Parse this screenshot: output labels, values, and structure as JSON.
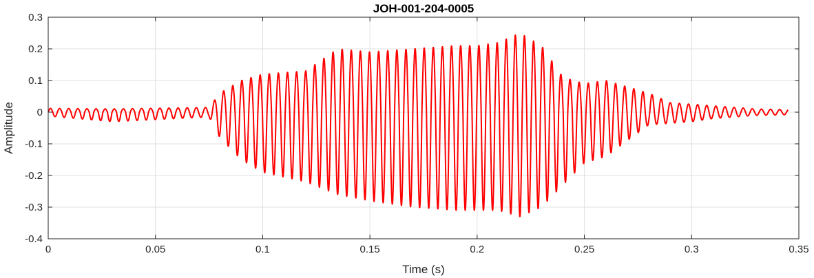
{
  "chart_data": {
    "type": "line",
    "title": "JOH-001-204-0005",
    "xlabel": "Time (s)",
    "ylabel": "Amplitude",
    "xlim": [
      0,
      0.35
    ],
    "ylim": [
      -0.4,
      0.3
    ],
    "xticks": [
      0,
      0.05,
      0.1,
      0.15,
      0.2,
      0.25,
      0.3,
      0.35
    ],
    "xtick_labels": [
      "0",
      "0.05",
      "0.1",
      "0.15",
      "0.2",
      "0.25",
      "0.3",
      "0.35"
    ],
    "yticks": [
      0.3,
      0.2,
      0.1,
      0,
      -0.1,
      -0.2,
      -0.3,
      -0.4
    ],
    "ytick_labels": [
      "0.3",
      "0.2",
      "0.1",
      "0",
      "-0.1",
      "-0.2",
      "-0.3",
      "-0.4"
    ],
    "grid": true,
    "legend": "none",
    "series": [
      {
        "color": "#ff0000",
        "x_range": [
          0,
          0.345
        ],
        "envelope_positive": {
          "x": [
            0,
            0.03,
            0.075,
            0.08,
            0.09,
            0.1,
            0.12,
            0.135,
            0.15,
            0.17,
            0.19,
            0.2,
            0.21,
            0.22,
            0.23,
            0.24,
            0.25,
            0.26,
            0.27,
            0.28,
            0.29,
            0.3,
            0.31,
            0.32,
            0.33,
            0.345
          ],
          "y": [
            0.012,
            0.01,
            0.015,
            0.06,
            0.1,
            0.12,
            0.13,
            0.2,
            0.19,
            0.2,
            0.21,
            0.21,
            0.22,
            0.25,
            0.21,
            0.11,
            0.09,
            0.1,
            0.08,
            0.06,
            0.03,
            0.025,
            0.02,
            0.015,
            0.01,
            0.008
          ]
        },
        "envelope_negative": {
          "x": [
            0,
            0.03,
            0.075,
            0.08,
            0.09,
            0.1,
            0.12,
            0.135,
            0.15,
            0.17,
            0.19,
            0.2,
            0.21,
            0.22,
            0.23,
            0.24,
            0.25,
            0.26,
            0.27,
            0.28,
            0.29,
            0.3,
            0.31,
            0.32,
            0.33,
            0.345
          ],
          "y": [
            -0.012,
            -0.03,
            -0.015,
            -0.08,
            -0.15,
            -0.19,
            -0.22,
            -0.26,
            -0.28,
            -0.3,
            -0.31,
            -0.31,
            -0.31,
            -0.33,
            -0.3,
            -0.23,
            -0.16,
            -0.14,
            -0.09,
            -0.04,
            -0.035,
            -0.03,
            -0.02,
            -0.015,
            -0.01,
            -0.008
          ]
        },
        "oscillation_period_s": 0.00425
      }
    ]
  }
}
